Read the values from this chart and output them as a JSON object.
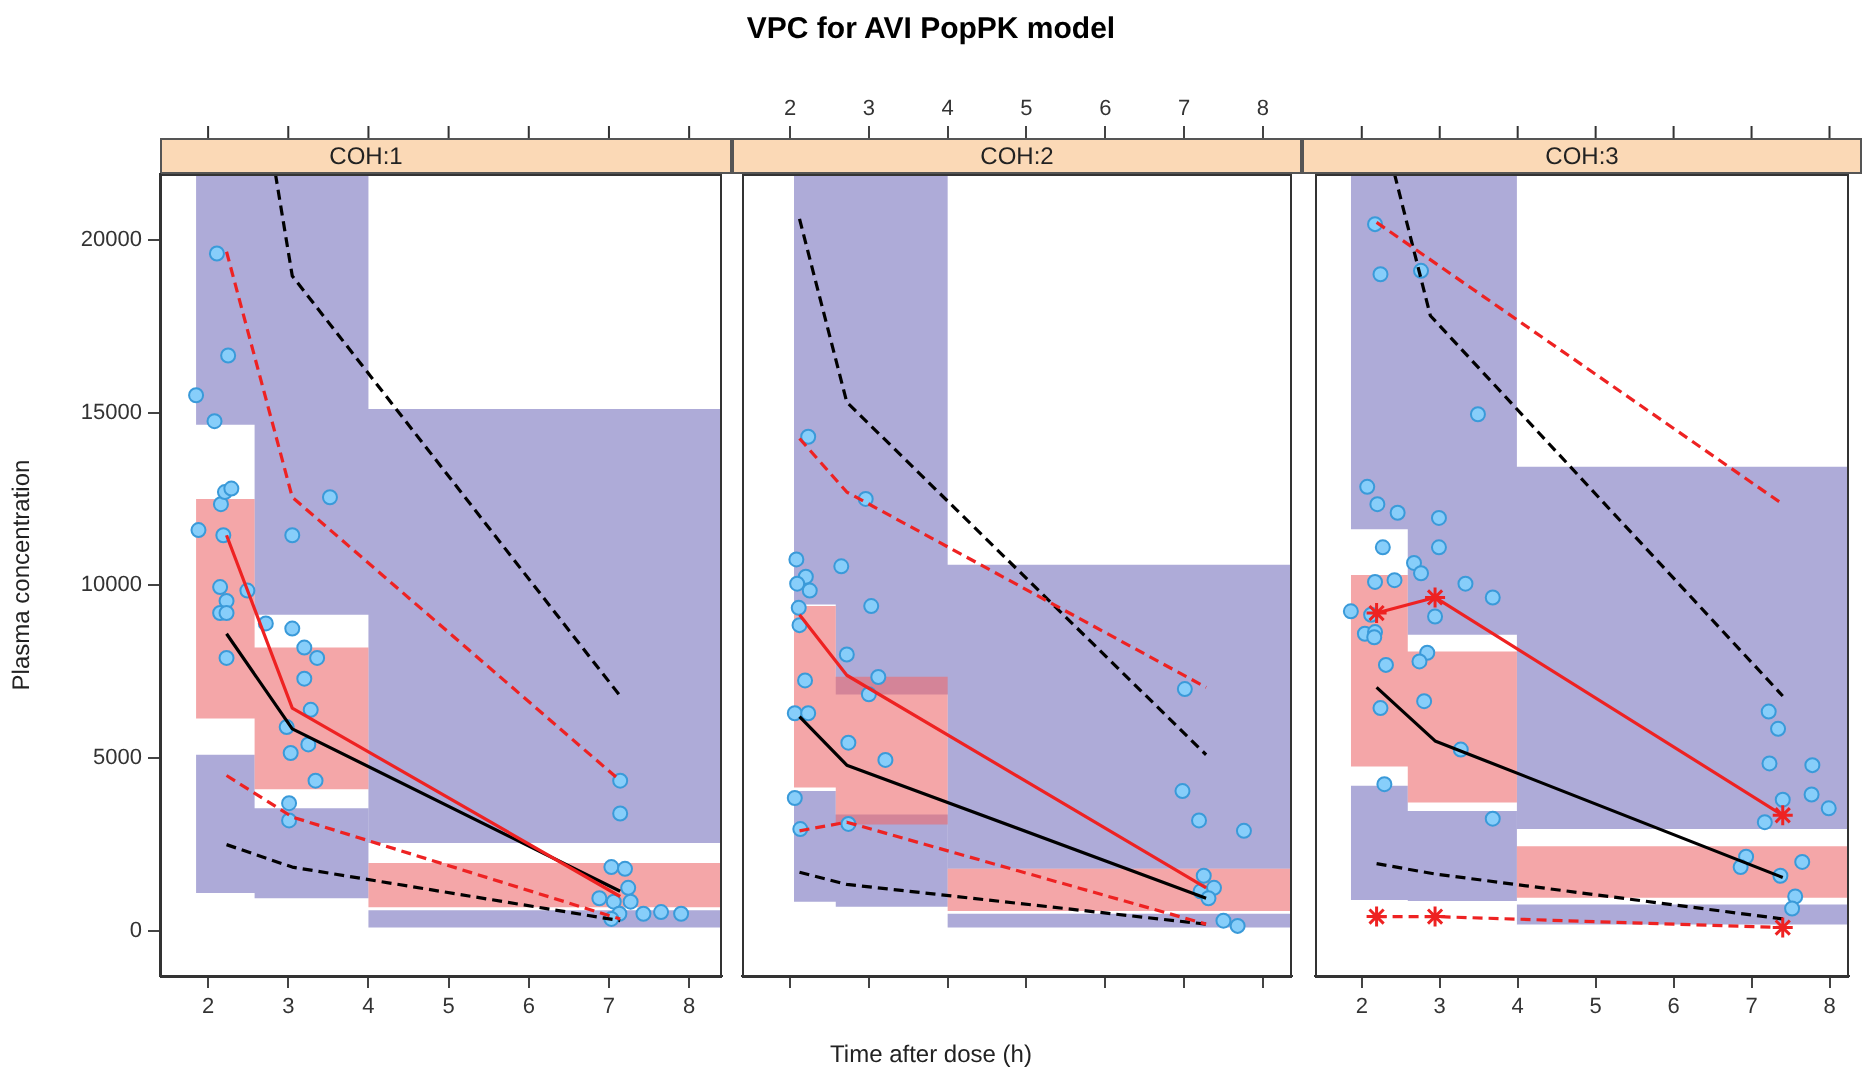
{
  "chart_data": [
    {
      "type": "scatter",
      "title": "COH:1",
      "ylabel": "Plasma concentration",
      "xlim": [
        1.4,
        8.41
      ],
      "xticks": [
        2,
        3,
        4,
        5,
        6,
        7,
        8
      ],
      "ylim": [
        -1300,
        21900
      ],
      "yticks": [
        0,
        5000,
        10000,
        15000,
        20000
      ],
      "grid": false,
      "legend": false,
      "series": [
        {
          "type": "line",
          "color": "#aeabd8",
          "x": [
            1.85,
            2.58,
            2.58,
            4,
            4,
            8.41
          ],
          "values": [
            null,
            null,
            null,
            null,
            null,
            null
          ],
          "upper": [
            21900,
            21900,
            21900,
            21900,
            15100,
            15100
          ],
          "lower": [
            14650,
            14650,
            9150,
            9150,
            2550,
            2550
          ]
        },
        {
          "type": "line",
          "color": "#adaad8",
          "x": [
            1.85,
            2.58,
            2.58,
            4,
            4,
            8.41
          ],
          "values": [
            null,
            null,
            null,
            null,
            null,
            null
          ],
          "upper": [
            5100,
            5100,
            3550,
            3550,
            600,
            600
          ],
          "lower": [
            1100,
            1100,
            950,
            950,
            100,
            100
          ]
        },
        {
          "type": "line",
          "color": "#f4a6a8",
          "x": [
            1.85,
            2.58,
            2.58,
            4,
            4,
            8.41
          ],
          "values": [
            null,
            null,
            null,
            null,
            null,
            null
          ],
          "upper": [
            12500,
            12500,
            8200,
            8200,
            1970,
            1970
          ],
          "lower": [
            6150,
            6150,
            4100,
            4100,
            690,
            690
          ]
        },
        {
          "color": "#87cefa",
          "marker": "circle",
          "x": [
            1.85,
            2.11,
            2.08,
            2.25,
            1.88,
            2.16,
            2.21,
            2.29,
            2.19,
            2.15,
            2.23,
            2.15,
            2.23,
            2.23,
            2.49,
            2.72,
            3.05,
            3.52,
            3.05,
            3.2,
            3.36,
            3.2,
            3.28,
            2.98,
            3.03,
            3.25,
            3.34,
            3.01,
            3.01,
            7.14,
            7.14,
            7.03,
            7.2,
            7.24,
            6.88,
            7.06,
            7.27,
            7.13,
            7.43,
            7.65,
            7.9,
            7.03
          ],
          "values": [
            15500,
            19600,
            14750,
            16650,
            11600,
            12350,
            12700,
            12800,
            11450,
            9950,
            9550,
            9200,
            9200,
            7900,
            9850,
            8900,
            11450,
            12550,
            8750,
            8200,
            7900,
            7300,
            6400,
            5900,
            5150,
            5400,
            4350,
            3700,
            3200,
            4350,
            3400,
            1850,
            1800,
            1250,
            950,
            850,
            850,
            500,
            500,
            550,
            500,
            350
          ]
        },
        {
          "type": "line",
          "color": "#000000",
          "line_style": "dashed",
          "x": [
            2.23,
            3.05,
            7.14
          ],
          "values": [
            2500,
            1850,
            300
          ]
        },
        {
          "type": "line",
          "color": "#000000",
          "line_style": "dashed",
          "x": [
            2.84,
            3.05,
            7.14
          ],
          "values": [
            21900,
            18950,
            6800
          ]
        },
        {
          "type": "line",
          "color": "#000000",
          "line_style": "solid",
          "x": [
            2.23,
            3.05,
            7.14
          ],
          "values": [
            8600,
            5850,
            1150
          ]
        },
        {
          "type": "line",
          "color": "#ee2222",
          "line_style": "dashed",
          "x": [
            2.23,
            3.05,
            7.14
          ],
          "values": [
            4500,
            3300,
            350
          ]
        },
        {
          "type": "line",
          "color": "#ee2222",
          "line_style": "dashed",
          "x": [
            2.23,
            3.05,
            7.14
          ],
          "values": [
            19650,
            12550,
            4350
          ]
        },
        {
          "type": "line",
          "color": "#ee2222",
          "line_style": "solid",
          "x": [
            2.23,
            3.05,
            7.14
          ],
          "values": [
            11450,
            6450,
            1000
          ]
        }
      ]
    },
    {
      "type": "scatter",
      "title": "COH:2",
      "subtitle": "VPC for AVI PopPK model",
      "xlabel": "Time after dose (h)",
      "xlim": [
        1.39,
        8.37
      ],
      "xticks": [
        2,
        3,
        4,
        5,
        6,
        7,
        8
      ],
      "x2lim": [
        1.39,
        8.37
      ],
      "x2ticks": [
        2,
        3,
        4,
        5,
        6,
        7,
        8
      ],
      "ylim": [
        -1300,
        21900
      ],
      "yticks": [
        0,
        5000,
        10000,
        15000,
        20000
      ],
      "tick_labels": false,
      "grid": false,
      "legend": false,
      "series": [
        {
          "type": "line",
          "color": "#aeabd8",
          "x": [
            2.05,
            2.58,
            2.58,
            4,
            4,
            8.37
          ],
          "values": [
            null,
            null,
            null,
            null,
            null,
            null
          ],
          "upper": [
            21900,
            21900,
            21900,
            21900,
            10600,
            10600
          ],
          "lower": [
            9450,
            9450,
            6840,
            6840,
            1800,
            1800
          ]
        },
        {
          "type": "line",
          "color": "#adaad8",
          "x": [
            2.05,
            2.58,
            2.58,
            4,
            4,
            8.37
          ],
          "values": [
            null,
            null,
            null,
            null,
            null,
            null
          ],
          "upper": [
            4050,
            4050,
            3370,
            3370,
            500,
            500
          ],
          "lower": [
            850,
            850,
            700,
            700,
            100,
            100
          ]
        },
        {
          "type": "line",
          "color": "#f4a6a8",
          "x": [
            2.05,
            2.58,
            2.58,
            4,
            4,
            8.37
          ],
          "values": [
            null,
            null,
            null,
            null,
            null,
            null
          ],
          "upper": [
            9400,
            9400,
            7360,
            7360,
            1800,
            1800
          ],
          "lower": [
            4150,
            4150,
            3080,
            3080,
            580,
            580
          ]
        },
        {
          "color": "#87cefa",
          "marker": "circle",
          "x": [
            2.23,
            2.96,
            2.08,
            2.2,
            2.09,
            2.25,
            2.65,
            3.03,
            2.11,
            2.12,
            2.72,
            3.12,
            3.0,
            2.19,
            2.06,
            2.23,
            2.74,
            3.21,
            2.06,
            2.13,
            2.74,
            7.01,
            6.98,
            7.19,
            7.76,
            7.25,
            7.38,
            7.21,
            7.31,
            7.5,
            7.68
          ],
          "values": [
            14300,
            12500,
            10750,
            10250,
            10050,
            9850,
            10550,
            9400,
            9350,
            8850,
            8000,
            7350,
            6850,
            7250,
            6300,
            6300,
            5450,
            4950,
            3850,
            2950,
            3100,
            7000,
            4050,
            3200,
            2900,
            1600,
            1250,
            1150,
            950,
            300,
            150
          ]
        },
        {
          "type": "line",
          "color": "#000000",
          "line_style": "dashed",
          "x": [
            2.12,
            2.72,
            7.28
          ],
          "values": [
            1700,
            1350,
            200
          ]
        },
        {
          "type": "line",
          "color": "#000000",
          "line_style": "dashed",
          "x": [
            2.12,
            2.72,
            7.28
          ],
          "values": [
            20600,
            15300,
            5100
          ]
        },
        {
          "type": "line",
          "color": "#000000",
          "line_style": "solid",
          "x": [
            2.12,
            2.72,
            7.28
          ],
          "values": [
            6200,
            4800,
            950
          ]
        },
        {
          "type": "line",
          "color": "#ee2222",
          "line_style": "dashed",
          "x": [
            2.12,
            2.72,
            7.28
          ],
          "values": [
            2900,
            3150,
            200
          ]
        },
        {
          "type": "line",
          "color": "#ee2222",
          "line_style": "dashed",
          "x": [
            2.12,
            2.72,
            7.28
          ],
          "values": [
            14250,
            12700,
            7050
          ]
        },
        {
          "type": "line",
          "color": "#ee2222",
          "line_style": "solid",
          "x": [
            2.12,
            2.72,
            7.28
          ],
          "values": [
            9150,
            7400,
            1250
          ]
        }
      ]
    },
    {
      "type": "scatter",
      "title": "COH:3",
      "xlim": [
        1.4,
        8.25
      ],
      "xticks": [
        2,
        3,
        4,
        5,
        6,
        7,
        8
      ],
      "ylim": [
        -1300,
        21900
      ],
      "yticks": [
        0,
        5000,
        10000,
        15000,
        20000
      ],
      "tick_labels": "x",
      "grid": false,
      "legend": false,
      "series": [
        {
          "type": "line",
          "color": "#aeabd8",
          "x": [
            1.86,
            2.59,
            2.59,
            3.99,
            3.99,
            8.25
          ],
          "values": [
            null,
            null,
            null,
            null,
            null,
            null
          ],
          "upper": [
            21900,
            21900,
            21900,
            21900,
            13430,
            13430
          ],
          "lower": [
            11620,
            11620,
            8570,
            8570,
            2950,
            2950
          ]
        },
        {
          "type": "line",
          "color": "#adaad8",
          "x": [
            1.86,
            2.59,
            2.59,
            3.99,
            3.99,
            8.25
          ],
          "values": [
            null,
            null,
            null,
            null,
            null,
            null
          ],
          "upper": [
            4200,
            4200,
            3470,
            3470,
            770,
            770
          ],
          "lower": [
            900,
            900,
            870,
            870,
            190,
            190
          ]
        },
        {
          "type": "line",
          "color": "#f4a6a8",
          "x": [
            1.86,
            2.59,
            2.59,
            3.99,
            3.99,
            8.25
          ],
          "values": [
            null,
            null,
            null,
            null,
            null,
            null
          ],
          "upper": [
            10300,
            10300,
            8090,
            8090,
            2450,
            2450
          ],
          "lower": [
            4760,
            4760,
            3720,
            3720,
            960,
            960
          ]
        },
        {
          "color": "#87cefa",
          "marker": "circle",
          "x": [
            2.17,
            2.24,
            2.76,
            3.49,
            2.07,
            2.2,
            2.46,
            2.99,
            2.27,
            2.99,
            2.67,
            2.76,
            2.17,
            2.42,
            3.33,
            3.68,
            1.86,
            2.12,
            2.04,
            2.17,
            2.16,
            2.94,
            2.84,
            2.74,
            2.31,
            2.8,
            2.24,
            3.27,
            2.29,
            3.68,
            7.22,
            7.34,
            7.23,
            7.78,
            7.77,
            7.99,
            7.4,
            7.17,
            6.93,
            6.86,
            7.65,
            7.37,
            7.56,
            7.52
          ],
          "values": [
            20450,
            19000,
            19100,
            14950,
            12850,
            12350,
            12100,
            11950,
            11100,
            11100,
            10650,
            10350,
            10100,
            10150,
            10050,
            9650,
            9250,
            9150,
            8600,
            8650,
            8500,
            9100,
            8050,
            7800,
            7700,
            6650,
            6450,
            5250,
            4250,
            3250,
            6350,
            5850,
            4850,
            4800,
            3950,
            3550,
            3800,
            3150,
            2150,
            1850,
            2000,
            1600,
            1000,
            650
          ]
        },
        {
          "type": "line",
          "color": "#000000",
          "line_style": "dashed",
          "x": [
            2.19,
            2.94,
            7.4
          ],
          "values": [
            1950,
            1650,
            350
          ]
        },
        {
          "type": "line",
          "color": "#000000",
          "line_style": "dashed",
          "x": [
            2.42,
            2.88,
            7.4
          ],
          "values": [
            21900,
            17800,
            6800
          ]
        },
        {
          "type": "line",
          "color": "#000000",
          "line_style": "solid",
          "x": [
            2.19,
            2.94,
            7.4
          ],
          "values": [
            7050,
            5500,
            1550
          ]
        },
        {
          "type": "line",
          "color": "#ee2222",
          "line_style": "dashed",
          "marker": "cross",
          "x": [
            2.19,
            2.94,
            7.4
          ],
          "values": [
            420,
            420,
            100
          ]
        },
        {
          "type": "line",
          "color": "#ee2222",
          "line_style": "dashed",
          "x": [
            2.19,
            7.4
          ],
          "values": [
            20500,
            12350
          ]
        },
        {
          "type": "line",
          "color": "#ee2222",
          "line_style": "solid",
          "marker": "cross",
          "x": [
            2.19,
            2.94,
            7.4
          ],
          "values": [
            9200,
            9650,
            3350
          ]
        }
      ]
    }
  ]
}
